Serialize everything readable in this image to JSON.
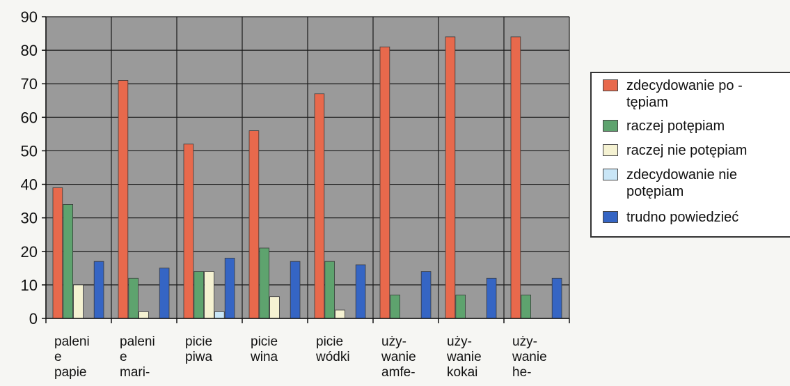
{
  "chart_data": {
    "type": "bar",
    "ylim": [
      0,
      90
    ],
    "yticks": [
      "0",
      "10",
      "20",
      "30",
      "40",
      "50",
      "60",
      "70",
      "80",
      "90"
    ],
    "grid": true,
    "legend_position": "right",
    "categories": [
      [
        "paleni",
        "e",
        "papie"
      ],
      [
        "paleni",
        "e",
        "mari-"
      ],
      [
        "picie",
        "piwa"
      ],
      [
        "picie",
        "wina"
      ],
      [
        "picie",
        "wódki"
      ],
      [
        "uży-",
        "wanie",
        "amfe-"
      ],
      [
        "uży-",
        "wanie",
        "kokai"
      ],
      [
        "uży-",
        "wanie",
        "he-"
      ]
    ],
    "series": [
      {
        "name": "zdecydowanie po - tępiam",
        "legend_lines": [
          "zdecydowanie po -",
          "tępiam"
        ],
        "color": "#e8694c",
        "values": [
          39,
          71,
          52,
          56,
          67,
          81,
          84,
          84
        ]
      },
      {
        "name": "raczej potępiam",
        "legend_lines": [
          "raczej potępiam"
        ],
        "color": "#5ea36e",
        "values": [
          34,
          12,
          14,
          21,
          17,
          7,
          7,
          7
        ]
      },
      {
        "name": "raczej nie potępiam",
        "legend_lines": [
          "raczej nie potępiam"
        ],
        "color": "#f5f2d2",
        "values": [
          10,
          2,
          14,
          6.5,
          2.5,
          0,
          0,
          0
        ]
      },
      {
        "name": "zdecydowanie nie potępiam",
        "legend_lines": [
          "zdecydowanie nie",
          "potępiam"
        ],
        "color": "#c9e6f7",
        "values": [
          0,
          0,
          2,
          0,
          0,
          0,
          0,
          0
        ]
      },
      {
        "name": "trudno powiedzieć",
        "legend_lines": [
          "trudno powiedzieć"
        ],
        "color": "#3565c4",
        "values": [
          17,
          15,
          18,
          17,
          16,
          14,
          12,
          12
        ]
      }
    ],
    "plot_background": "#9a9a9a",
    "grid_color": "#1a1a1a"
  }
}
